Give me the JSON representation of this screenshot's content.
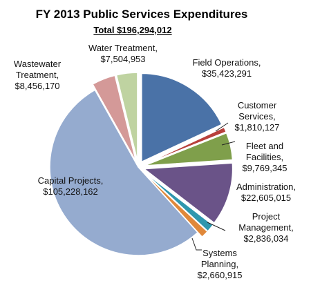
{
  "chart_data": {
    "type": "pie",
    "title": "FY 2013 Public Services Expenditures",
    "subtitle": "Total  $196,294,012",
    "slices": [
      {
        "name": "Field Operations",
        "value_label": "$35,423,291",
        "value": 35423291,
        "color": "#4a72a7",
        "exploded": true
      },
      {
        "name": "Customer Services",
        "value_label": "$1,810,127",
        "value": 1810127,
        "color": "#b8403c",
        "exploded": true
      },
      {
        "name": "Fleet and Facilities",
        "value_label": "$9,769,345",
        "value": 9769345,
        "color": "#7f9f4b",
        "exploded": true
      },
      {
        "name": "Administration",
        "value_label": "$22,605,015",
        "value": 22605015,
        "color": "#6a5388",
        "exploded": true
      },
      {
        "name": "Project Management",
        "value_label": "$2,836,034",
        "value": 2836034,
        "color": "#2f97ae",
        "exploded": true
      },
      {
        "name": "Systems Planning",
        "value_label": "$2,660,915",
        "value": 2660915,
        "color": "#e0883a",
        "exploded": true
      },
      {
        "name": "Capital Projects",
        "value_label": "$105,228,162",
        "value": 105228162,
        "color": "#95abcf",
        "exploded": false
      },
      {
        "name": "Wastewater Treatment",
        "value_label": "$8,456,170",
        "value": 8456170,
        "color": "#d49998",
        "exploded": true
      },
      {
        "name": "Water Treatment",
        "value_label": "$7,504,953",
        "value": 7504953,
        "color": "#bfd3a1",
        "exploded": true
      }
    ],
    "label_lines": [
      {
        "slice": "Field Operations",
        "lines": [
          "Field Operations,",
          "$35,423,291"
        ]
      },
      {
        "slice": "Customer Services",
        "lines": [
          "Customer",
          "Services,",
          "$1,810,127"
        ]
      },
      {
        "slice": "Fleet and Facilities",
        "lines": [
          "Fleet and",
          "Facilities,",
          "$9,769,345"
        ]
      },
      {
        "slice": "Administration",
        "lines": [
          "Administration,",
          "$22,605,015"
        ]
      },
      {
        "slice": "Project Management",
        "lines": [
          "Project",
          "Management,",
          "$2,836,034"
        ]
      },
      {
        "slice": "Systems Planning",
        "lines": [
          "Systems",
          "Planning,",
          "$2,660,915"
        ]
      },
      {
        "slice": "Capital Projects",
        "lines": [
          "Capital Projects,",
          "$105,228,162"
        ]
      },
      {
        "slice": "Wastewater Treatment",
        "lines": [
          "Wastewater",
          "Treatment,",
          "$8,456,170"
        ]
      },
      {
        "slice": "Water Treatment",
        "lines": [
          "Water Treatment,",
          "$7,504,953"
        ]
      }
    ]
  }
}
